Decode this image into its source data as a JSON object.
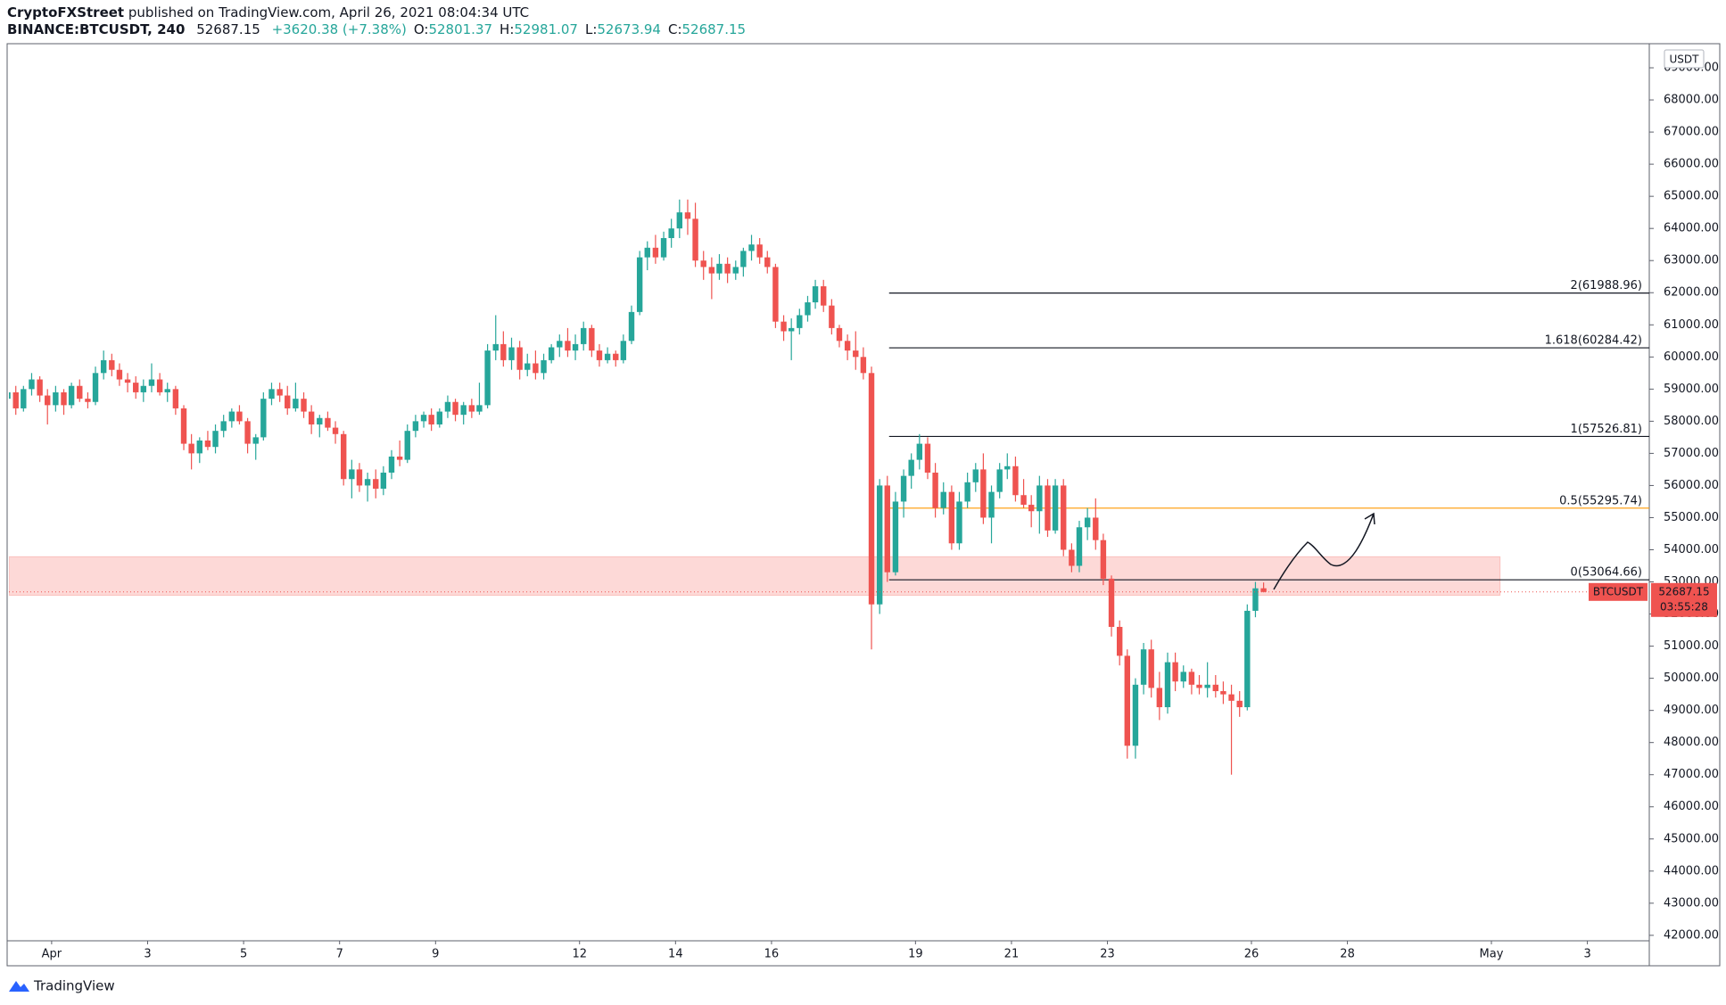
{
  "header": {
    "author": "CryptoFXStreet",
    "published": "published on TradingView.com, April 26, 2021 08:04:34 UTC",
    "symbol": "BINANCE:BTCUSDT, 240",
    "last": "52687.15",
    "change": "+3620.38 (+7.38%)",
    "ohlc": [
      {
        "key": "O:",
        "value": "52801.37"
      },
      {
        "key": "H:",
        "value": "52981.07"
      },
      {
        "key": "L:",
        "value": "52673.94"
      },
      {
        "key": "C:",
        "value": "52687.15"
      }
    ]
  },
  "footer": {
    "brand": "TradingView"
  },
  "chart_data": {
    "type": "candlestick",
    "symbol": "BTCUSDT",
    "axis_unit": "USDT",
    "countdown": "03:55:28",
    "up_color": "#26a69a",
    "down_color": "#ef5350",
    "xlim": [
      0.11,
      34.29
    ],
    "xticks": [
      {
        "value": 1,
        "label": "Apr"
      },
      3,
      5,
      7,
      9,
      12,
      14,
      16,
      19,
      21,
      23,
      26,
      28,
      {
        "value": 31,
        "label": "May"
      },
      {
        "value": 33,
        "label": "3"
      }
    ],
    "ylim": [
      41830,
      69750
    ],
    "yticks": [
      {
        "value": 42000,
        "label": "42000.00"
      },
      {
        "value": 43000,
        "label": "43000.00"
      },
      {
        "value": 44000,
        "label": "44000.00"
      },
      {
        "value": 45000,
        "label": "45000.00"
      },
      {
        "value": 46000,
        "label": "46000.00"
      },
      {
        "value": 47000,
        "label": "47000.00"
      },
      {
        "value": 48000,
        "label": "48000.00"
      },
      {
        "value": 49000,
        "label": "49000.00"
      },
      {
        "value": 50000,
        "label": "50000.00"
      },
      {
        "value": 51000,
        "label": "51000.00"
      },
      {
        "value": 52000,
        "label": "52000.00"
      },
      {
        "value": 53000,
        "label": "53000.00"
      },
      {
        "value": 54000,
        "label": "54000.00"
      },
      {
        "value": 55000,
        "label": "55000.00"
      },
      {
        "value": 56000,
        "label": "56000.00"
      },
      {
        "value": 57000,
        "label": "57000.00"
      },
      {
        "value": 58000,
        "label": "58000.00"
      },
      {
        "value": 59000,
        "label": "59000.00"
      },
      {
        "value": 60000,
        "label": "60000.00"
      },
      {
        "value": 61000,
        "label": "61000.00"
      },
      {
        "value": 62000,
        "label": "62000.00"
      },
      {
        "value": 63000,
        "label": "63000.00"
      },
      {
        "value": 64000,
        "label": "64000.00"
      },
      {
        "value": 65000,
        "label": "65000.00"
      },
      {
        "value": 66000,
        "label": "66000.00"
      },
      {
        "value": 67000,
        "label": "67000.00"
      },
      {
        "value": 68000,
        "label": "68000.00"
      },
      {
        "value": 69000,
        "label": "69000.00"
      }
    ],
    "grid": false,
    "fib_x_start": 18.45,
    "fib_levels": [
      {
        "label": "2(61988.96)",
        "value": 61988.96,
        "color": "#131722"
      },
      {
        "label": "1.618(60284.42)",
        "value": 60284.42,
        "color": "#131722"
      },
      {
        "label": "1(57526.81)",
        "value": 57526.81,
        "color": "#131722"
      },
      {
        "label": "0.5(55295.74)",
        "value": 55295.74,
        "color": "#ff9800"
      },
      {
        "label": "0(53064.66)",
        "value": 53064.66,
        "color": "#131722"
      }
    ],
    "zone": {
      "xlim": [
        0.11,
        31.18
      ],
      "ylim": [
        52584,
        53783
      ],
      "color": "#f44336"
    },
    "x": [
      0,
      0.17,
      0.33,
      0.5,
      0.67,
      0.83,
      1,
      1.17,
      1.33,
      1.5,
      1.67,
      1.83,
      2,
      2.17,
      2.33,
      2.5,
      2.67,
      2.83,
      3,
      3.17,
      3.33,
      3.5,
      3.67,
      3.83,
      4,
      4.17,
      4.33,
      4.5,
      4.67,
      4.83,
      5,
      5.17,
      5.33,
      5.5,
      5.67,
      5.83,
      6,
      6.17,
      6.33,
      6.5,
      6.67,
      6.83,
      7,
      7.17,
      7.33,
      7.5,
      7.67,
      7.83,
      8,
      8.17,
      8.33,
      8.5,
      8.67,
      8.83,
      9,
      9.17,
      9.33,
      9.5,
      9.67,
      9.83,
      10,
      10.17,
      10.33,
      10.5,
      10.67,
      10.83,
      11,
      11.17,
      11.33,
      11.5,
      11.67,
      11.83,
      12,
      12.17,
      12.33,
      12.5,
      12.67,
      12.83,
      13,
      13.17,
      13.33,
      13.5,
      13.67,
      13.83,
      14,
      14.17,
      14.33,
      14.5,
      14.67,
      14.83,
      15,
      15.17,
      15.33,
      15.5,
      15.67,
      15.83,
      16,
      16.17,
      16.33,
      16.5,
      16.67,
      16.83,
      17,
      17.17,
      17.33,
      17.5,
      17.67,
      17.83,
      18,
      18.17,
      18.33,
      18.5,
      18.67,
      18.83,
      19,
      19.17,
      19.33,
      19.5,
      19.67,
      19.83,
      20,
      20.17,
      20.33,
      20.5,
      20.67,
      20.83,
      21,
      21.17,
      21.33,
      21.5,
      21.67,
      21.83,
      22,
      22.17,
      22.33,
      22.5,
      22.67,
      22.83,
      23,
      23.17,
      23.33,
      23.5,
      23.67,
      23.83,
      24,
      24.17,
      24.33,
      24.5,
      24.67,
      24.83,
      25,
      25.17,
      25.33,
      25.5,
      25.67,
      25.83,
      26,
      26.17
    ],
    "candles": [
      [
        58700,
        59200,
        58400,
        58900
      ],
      [
        58900,
        59100,
        58200,
        58400
      ],
      [
        58400,
        59100,
        58300,
        59000
      ],
      [
        59000,
        59500,
        58800,
        59300
      ],
      [
        59300,
        59400,
        58600,
        58800
      ],
      [
        58800,
        59000,
        57900,
        58500
      ],
      [
        58500,
        59100,
        58300,
        58900
      ],
      [
        58900,
        59000,
        58200,
        58500
      ],
      [
        58500,
        59200,
        58400,
        59100
      ],
      [
        59100,
        59300,
        58600,
        58700
      ],
      [
        58700,
        58900,
        58400,
        58600
      ],
      [
        58600,
        59700,
        58500,
        59500
      ],
      [
        59500,
        60200,
        59300,
        59900
      ],
      [
        59900,
        60100,
        59400,
        59600
      ],
      [
        59600,
        59800,
        59100,
        59300
      ],
      [
        59300,
        59500,
        58900,
        59200
      ],
      [
        59200,
        59400,
        58700,
        58900
      ],
      [
        58900,
        59300,
        58600,
        59100
      ],
      [
        59100,
        59800,
        58900,
        59300
      ],
      [
        59300,
        59500,
        58800,
        58900
      ],
      [
        58900,
        59200,
        58600,
        59000
      ],
      [
        59000,
        59100,
        58200,
        58400
      ],
      [
        58400,
        58500,
        57100,
        57300
      ],
      [
        57300,
        57600,
        56500,
        57000
      ],
      [
        57000,
        57500,
        56700,
        57400
      ],
      [
        57400,
        57700,
        57100,
        57200
      ],
      [
        57200,
        57900,
        57000,
        57700
      ],
      [
        57700,
        58200,
        57500,
        58000
      ],
      [
        58000,
        58400,
        57800,
        58300
      ],
      [
        58300,
        58500,
        57900,
        58000
      ],
      [
        58000,
        58100,
        57000,
        57300
      ],
      [
        57300,
        57600,
        56800,
        57500
      ],
      [
        57500,
        58900,
        57400,
        58700
      ],
      [
        58700,
        59200,
        58500,
        59000
      ],
      [
        59000,
        59200,
        58600,
        58800
      ],
      [
        58800,
        59100,
        58200,
        58400
      ],
      [
        58400,
        59200,
        58300,
        58700
      ],
      [
        58700,
        58900,
        58100,
        58300
      ],
      [
        58300,
        58500,
        57600,
        57900
      ],
      [
        57900,
        58200,
        57500,
        58100
      ],
      [
        58100,
        58300,
        57700,
        57800
      ],
      [
        57800,
        58000,
        57300,
        57600
      ],
      [
        57600,
        57700,
        56000,
        56200
      ],
      [
        56200,
        56800,
        55600,
        56500
      ],
      [
        56500,
        56700,
        55800,
        56000
      ],
      [
        56000,
        56400,
        55500,
        56200
      ],
      [
        56200,
        56500,
        55600,
        55900
      ],
      [
        55900,
        56600,
        55700,
        56400
      ],
      [
        56400,
        57100,
        56200,
        56900
      ],
      [
        56900,
        57400,
        56600,
        56800
      ],
      [
        56800,
        57900,
        56700,
        57700
      ],
      [
        57700,
        58200,
        57500,
        58000
      ],
      [
        58000,
        58300,
        57800,
        58200
      ],
      [
        58200,
        58400,
        57700,
        57900
      ],
      [
        57900,
        58400,
        57800,
        58300
      ],
      [
        58300,
        58800,
        58100,
        58600
      ],
      [
        58600,
        58700,
        58000,
        58200
      ],
      [
        58200,
        58600,
        57900,
        58500
      ],
      [
        58500,
        58700,
        58100,
        58300
      ],
      [
        58300,
        59200,
        58200,
        58500
      ],
      [
        58500,
        60400,
        58400,
        60200
      ],
      [
        60200,
        61300,
        59900,
        60400
      ],
      [
        60400,
        60800,
        59700,
        59900
      ],
      [
        59900,
        60600,
        59600,
        60300
      ],
      [
        60300,
        60500,
        59300,
        59600
      ],
      [
        59600,
        60100,
        59400,
        59800
      ],
      [
        59800,
        60200,
        59300,
        59500
      ],
      [
        59500,
        60100,
        59300,
        59900
      ],
      [
        59900,
        60400,
        59800,
        60300
      ],
      [
        60300,
        60700,
        60000,
        60500
      ],
      [
        60500,
        60900,
        60000,
        60200
      ],
      [
        60200,
        60700,
        59900,
        60400
      ],
      [
        60400,
        61100,
        60200,
        60900
      ],
      [
        60900,
        61000,
        60000,
        60200
      ],
      [
        60200,
        60400,
        59700,
        59900
      ],
      [
        59900,
        60300,
        59800,
        60100
      ],
      [
        60100,
        60200,
        59700,
        59900
      ],
      [
        59900,
        60700,
        59800,
        60500
      ],
      [
        60500,
        61600,
        60400,
        61400
      ],
      [
        61400,
        63300,
        61300,
        63100
      ],
      [
        63100,
        63600,
        62700,
        63400
      ],
      [
        63400,
        63800,
        62900,
        63100
      ],
      [
        63100,
        63900,
        63000,
        63700
      ],
      [
        63700,
        64300,
        63400,
        64000
      ],
      [
        64000,
        64900,
        63700,
        64500
      ],
      [
        64500,
        64900,
        63800,
        64300
      ],
      [
        64300,
        64800,
        62800,
        63000
      ],
      [
        63000,
        63300,
        62400,
        62800
      ],
      [
        62800,
        63100,
        61800,
        62600
      ],
      [
        62600,
        63200,
        62400,
        62900
      ],
      [
        62900,
        63100,
        62300,
        62600
      ],
      [
        62600,
        63000,
        62400,
        62800
      ],
      [
        62800,
        63400,
        62500,
        63300
      ],
      [
        63300,
        63800,
        63000,
        63500
      ],
      [
        63500,
        63700,
        62900,
        63100
      ],
      [
        63100,
        63300,
        62600,
        62800
      ],
      [
        62800,
        62900,
        60900,
        61100
      ],
      [
        61100,
        61300,
        60500,
        60800
      ],
      [
        60800,
        61200,
        59900,
        60900
      ],
      [
        60900,
        61500,
        60700,
        61300
      ],
      [
        61300,
        61900,
        61100,
        61700
      ],
      [
        61700,
        62400,
        61500,
        62200
      ],
      [
        62200,
        62400,
        61400,
        61600
      ],
      [
        61600,
        61800,
        60700,
        60900
      ],
      [
        60900,
        61000,
        60300,
        60500
      ],
      [
        60500,
        60700,
        59900,
        60200
      ],
      [
        60200,
        60800,
        59600,
        60000
      ],
      [
        60000,
        60300,
        59300,
        59500
      ],
      [
        59500,
        59700,
        50900,
        52300
      ],
      [
        52300,
        56200,
        52000,
        56000
      ],
      [
        56000,
        56300,
        53000,
        53300
      ],
      [
        53300,
        55800,
        53200,
        55500
      ],
      [
        55500,
        56500,
        55000,
        56300
      ],
      [
        56300,
        57000,
        55900,
        56800
      ],
      [
        56800,
        57600,
        56500,
        57300
      ],
      [
        57300,
        57500,
        56200,
        56400
      ],
      [
        56400,
        56700,
        55000,
        55300
      ],
      [
        55300,
        56100,
        55100,
        55800
      ],
      [
        55800,
        56000,
        54000,
        54200
      ],
      [
        54200,
        55800,
        54000,
        55500
      ],
      [
        55500,
        56400,
        55300,
        56100
      ],
      [
        56100,
        56700,
        55800,
        56500
      ],
      [
        56500,
        57000,
        54800,
        55000
      ],
      [
        55000,
        56000,
        54200,
        55800
      ],
      [
        55800,
        56700,
        55600,
        56500
      ],
      [
        56500,
        57000,
        56200,
        56600
      ],
      [
        56600,
        56900,
        55500,
        55700
      ],
      [
        55700,
        56200,
        55300,
        55400
      ],
      [
        55400,
        55700,
        54700,
        55200
      ],
      [
        55200,
        56300,
        54500,
        56000
      ],
      [
        56000,
        56200,
        54400,
        54600
      ],
      [
        54600,
        56200,
        54500,
        56000
      ],
      [
        56000,
        56200,
        53800,
        54000
      ],
      [
        54000,
        54200,
        53300,
        53500
      ],
      [
        53500,
        54900,
        53300,
        54700
      ],
      [
        54700,
        55300,
        54300,
        55000
      ],
      [
        55000,
        55600,
        54000,
        54300
      ],
      [
        54300,
        54500,
        52900,
        53100
      ],
      [
        53100,
        53200,
        51300,
        51600
      ],
      [
        51600,
        51800,
        50400,
        50700
      ],
      [
        50700,
        50900,
        47500,
        47900
      ],
      [
        47900,
        50000,
        47500,
        49800
      ],
      [
        49800,
        51100,
        49500,
        50900
      ],
      [
        50900,
        51200,
        49400,
        49700
      ],
      [
        49700,
        50200,
        48700,
        49100
      ],
      [
        49100,
        50800,
        48900,
        50500
      ],
      [
        50500,
        50800,
        49600,
        49900
      ],
      [
        49900,
        50400,
        49700,
        50200
      ],
      [
        50200,
        50300,
        49500,
        49800
      ],
      [
        49800,
        50100,
        49500,
        49700
      ],
      [
        49700,
        50500,
        49400,
        49800
      ],
      [
        49800,
        50100,
        49400,
        49600
      ],
      [
        49600,
        49900,
        49200,
        49500
      ],
      [
        49500,
        49800,
        47000,
        49300
      ],
      [
        49300,
        49600,
        48800,
        49100
      ],
      [
        49100,
        52300,
        49000,
        52100
      ],
      [
        52100,
        53000,
        51900,
        52800
      ],
      [
        52801.37,
        52981.07,
        52673.94,
        52687.15
      ]
    ]
  }
}
